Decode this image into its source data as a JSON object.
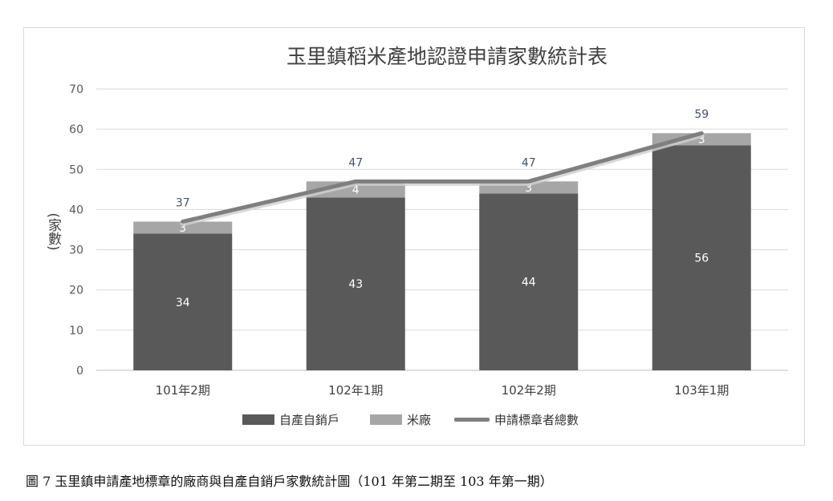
{
  "chart_data": {
    "type": "bar",
    "stacked": true,
    "title": "玉里鎮稻米產地認證申請家數統計表",
    "ylabel": "(家數)",
    "xlabel": "",
    "ylim": [
      0,
      70
    ],
    "yticks": [
      0,
      10,
      20,
      30,
      40,
      50,
      60,
      70
    ],
    "grid": true,
    "legend_position": "bottom",
    "categories": [
      "101年2期",
      "102年1期",
      "102年2期",
      "103年1期"
    ],
    "series": [
      {
        "name": "自產自銷戶",
        "kind": "bar",
        "color": "#595959",
        "label_color": "#ffffff",
        "values": [
          34,
          43,
          44,
          56
        ]
      },
      {
        "name": "米廠",
        "kind": "bar",
        "color": "#a6a6a6",
        "label_color": "#ffffff",
        "values": [
          3,
          4,
          3,
          3
        ]
      },
      {
        "name": "申請標章者總數",
        "kind": "line",
        "color": "#7f7f7f",
        "label_color": "#44546a",
        "values": [
          37,
          47,
          47,
          59
        ]
      }
    ]
  },
  "caption": "圖 7 玉里鎮申請產地標章的廠商與自產自銷戶家數統計圖（101 年第二期至 103 年第一期）"
}
